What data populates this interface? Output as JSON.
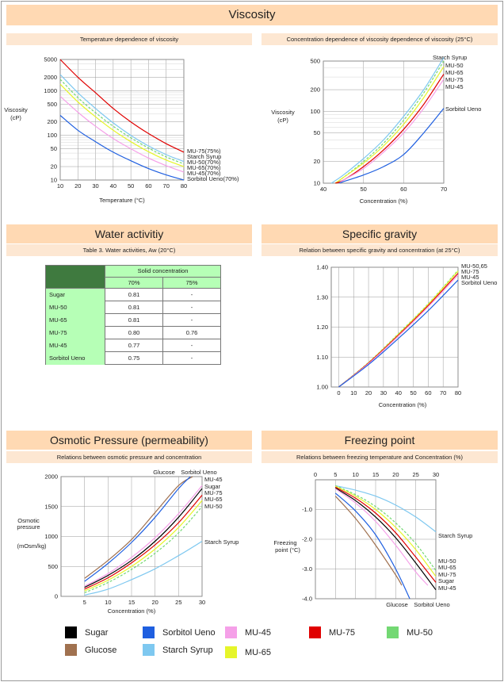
{
  "page": {
    "title": "Viscosity"
  },
  "colors": {
    "sugar": "#000000",
    "glucose": "#a0714f",
    "sorbitol": "#1f5fe0",
    "starch": "#7ec8f0",
    "mu45": "#f5a0e8",
    "mu50": "#73d873",
    "mu65": "#e6f52a",
    "mu75": "#e00000"
  },
  "panels": {
    "visc_temp": {
      "subtitle": "Temperature dependence of viscosity",
      "ylabel_line1": "Viscosity",
      "ylabel_line2": "(cP)",
      "xlabel": "Temperature (°C)",
      "labels": [
        "MU-75(75%)",
        "Starch Syrup",
        "MU-50(70%)",
        "MU-65(70%)",
        "MU-45(70%)",
        "Sorbitol Ueno(70%)"
      ]
    },
    "visc_conc": {
      "subtitle": "Concentration dependence of viscosity dependence of viscosity (25°C)",
      "ylabel_line1": "Viscosity",
      "ylabel_line2": "(cP)",
      "xlabel": "Concentration (%)",
      "labels": [
        "Starch Syrup",
        "MU-50",
        "MU-65",
        "MU-75",
        "MU-45",
        "Sorbitol Ueno"
      ]
    },
    "water": {
      "title": "Water activitiy",
      "subtitle": "Table 3. Water activities, Aw (20°C)"
    },
    "sg": {
      "title": "Specific gravity",
      "subtitle": "Relation between specific gravity and concentration (at 25°C)",
      "xlabel": "Concentration (%)",
      "labels": [
        "MU-50,65",
        "MU-75",
        "MU-45",
        "Sorbitol Ueno"
      ]
    },
    "osm": {
      "title": "Osmotic Pressure (permeability)",
      "subtitle": "Relations between osmotic pressure and concentration",
      "ylabel_line1": "Osmotic",
      "ylabel_line2": "pressure",
      "ylabel_line3": "(mOsm/kg)",
      "xlabel": "Concentration (%)",
      "top_labels": [
        "Glucose",
        "Sorbitol Ueno"
      ],
      "labels": [
        "MU-45",
        "Sugar",
        "MU-75",
        "MU-65",
        "MU-50"
      ],
      "extra_label": "Starch Syrup"
    },
    "fp": {
      "title": "Freezing point",
      "subtitle": "Relations between freezing temperature and Concentration (%)",
      "ylabel_line1": "Freezing",
      "ylabel_line2": "point (°C)",
      "starch_label": "Starch Syrup",
      "labels": [
        "MU-50",
        "MU-65",
        "MU-75",
        "Sugar",
        "MU-45"
      ],
      "bottom_labels": [
        "Glucose",
        "Sorbitol Ueno"
      ]
    }
  },
  "water_table": {
    "header_group": "Solid concentration",
    "col1": "70%",
    "col2": "75%",
    "rows": [
      {
        "name": "Sugar",
        "v70": "0.81",
        "v75": "-"
      },
      {
        "name": "MU-50",
        "v70": "0.81",
        "v75": "-"
      },
      {
        "name": "MU-65",
        "v70": "0.81",
        "v75": "-"
      },
      {
        "name": "MU-75",
        "v70": "0.80",
        "v75": "0.76"
      },
      {
        "name": "MU-45",
        "v70": "0.77",
        "v75": "-"
      },
      {
        "name": "Sorbitol Ueno",
        "v70": "0.75",
        "v75": "-"
      }
    ]
  },
  "legend": [
    {
      "name": "Sugar",
      "key": "sugar"
    },
    {
      "name": "Sorbitol Ueno",
      "key": "sorbitol"
    },
    {
      "name": "MU-45",
      "key": "mu45"
    },
    {
      "name": "MU-75",
      "key": "mu75"
    },
    {
      "name": "MU-50",
      "key": "mu50"
    },
    {
      "name": "Glucose",
      "key": "glucose"
    },
    {
      "name": "Starch Syrup",
      "key": "starch"
    },
    {
      "name": "MU-65",
      "key": "mu65"
    }
  ],
  "chart_data": [
    {
      "type": "line",
      "xlim": [
        10,
        80
      ],
      "ylim": [
        10,
        5000
      ],
      "yscale": "log",
      "xticks": [
        10,
        20,
        30,
        40,
        50,
        60,
        70,
        80
      ],
      "yticks": [
        10,
        20,
        50,
        100,
        200,
        500,
        1000,
        2000,
        5000
      ],
      "grid": true,
      "series": [
        {
          "name": "MU-75(75%)",
          "key": "mu75",
          "dashed": false,
          "x": [
            10,
            20,
            30,
            40,
            50,
            60,
            70,
            80
          ],
          "y": [
            5000,
            2000,
            900,
            400,
            200,
            110,
            65,
            42
          ]
        },
        {
          "name": "Starch Syrup",
          "key": "starch",
          "dashed": false,
          "x": [
            10,
            20,
            30,
            40,
            50,
            60,
            70,
            80
          ],
          "y": [
            2300,
            900,
            400,
            190,
            100,
            58,
            37,
            26
          ]
        },
        {
          "name": "MU-50(70%)",
          "key": "mu50",
          "dashed": true,
          "x": [
            10,
            20,
            30,
            40,
            50,
            60,
            70,
            80
          ],
          "y": [
            1800,
            700,
            320,
            160,
            88,
            52,
            33,
            23
          ]
        },
        {
          "name": "MU-65(70%)",
          "key": "mu65",
          "dashed": false,
          "x": [
            10,
            20,
            30,
            40,
            50,
            60,
            70,
            80
          ],
          "y": [
            1400,
            560,
            260,
            130,
            72,
            43,
            28,
            20
          ]
        },
        {
          "name": "MU-45(70%)",
          "key": "mu45",
          "dashed": false,
          "x": [
            10,
            20,
            30,
            40,
            50,
            60,
            70,
            80
          ],
          "y": [
            750,
            330,
            160,
            85,
            50,
            31,
            21,
            15
          ]
        },
        {
          "name": "Sorbitol Ueno(70%)",
          "key": "sorbitol",
          "dashed": false,
          "x": [
            10,
            20,
            30,
            40,
            50,
            60,
            70,
            80
          ],
          "y": [
            280,
            130,
            72,
            42,
            27,
            18,
            13,
            10
          ]
        }
      ]
    },
    {
      "type": "line",
      "xlim": [
        40,
        70
      ],
      "ylim": [
        10,
        500
      ],
      "yscale": "log",
      "xticks": [
        40,
        50,
        60,
        70
      ],
      "yticks": [
        10,
        20,
        50,
        100,
        200,
        500
      ],
      "grid": true,
      "series": [
        {
          "name": "Starch Syrup",
          "key": "starch",
          "dashed": false,
          "x": [
            42,
            45,
            50,
            55,
            60,
            65,
            70
          ],
          "y": [
            10,
            13,
            22,
            40,
            85,
            200,
            560
          ]
        },
        {
          "name": "MU-50",
          "key": "mu50",
          "dashed": true,
          "x": [
            43,
            45,
            50,
            55,
            60,
            65,
            70
          ],
          "y": [
            10,
            12,
            20,
            36,
            75,
            180,
            500
          ]
        },
        {
          "name": "MU-65",
          "key": "mu65",
          "dashed": false,
          "x": [
            43,
            45,
            50,
            55,
            60,
            65,
            70
          ],
          "y": [
            10,
            12,
            19,
            33,
            66,
            155,
            420
          ]
        },
        {
          "name": "MU-75",
          "key": "mu75",
          "dashed": false,
          "x": [
            43,
            45,
            50,
            55,
            60,
            65,
            70
          ],
          "y": [
            10,
            11,
            17,
            29,
            56,
            125,
            330
          ]
        },
        {
          "name": "MU-45",
          "key": "mu45",
          "dashed": false,
          "x": [
            44,
            45,
            50,
            55,
            60,
            65,
            70
          ],
          "y": [
            10,
            11,
            16,
            27,
            50,
            110,
            280
          ]
        },
        {
          "name": "Sorbitol Ueno",
          "key": "sorbitol",
          "dashed": false,
          "x": [
            44,
            45,
            50,
            55,
            60,
            65,
            70
          ],
          "y": [
            10,
            10.5,
            13,
            17,
            25,
            50,
            110
          ]
        }
      ]
    },
    {
      "type": "line",
      "xlim": [
        -5,
        80
      ],
      "ylim": [
        1.0,
        1.4
      ],
      "xticks": [
        0,
        10,
        20,
        30,
        40,
        50,
        60,
        70,
        80
      ],
      "yticks": [
        1.0,
        1.1,
        1.2,
        1.3,
        1.4
      ],
      "grid": true,
      "series": [
        {
          "name": "MU-50,65",
          "key": "mu50",
          "dashed": true,
          "x": [
            0,
            20,
            40,
            60,
            80
          ],
          "y": [
            1.0,
            1.082,
            1.178,
            1.278,
            1.39
          ]
        },
        {
          "name": "MU-65",
          "key": "mu65",
          "dashed": false,
          "x": [
            0,
            20,
            40,
            60,
            80
          ],
          "y": [
            1.0,
            1.081,
            1.176,
            1.276,
            1.387
          ]
        },
        {
          "name": "MU-75",
          "key": "mu75",
          "dashed": false,
          "x": [
            0,
            20,
            40,
            60,
            80
          ],
          "y": [
            1.0,
            1.08,
            1.173,
            1.272,
            1.38
          ]
        },
        {
          "name": "MU-45",
          "key": "mu45",
          "dashed": false,
          "x": [
            0,
            20,
            40,
            60,
            80
          ],
          "y": [
            1.0,
            1.078,
            1.17,
            1.268,
            1.374
          ]
        },
        {
          "name": "Sorbitol Ueno",
          "key": "sorbitol",
          "dashed": false,
          "x": [
            0,
            20,
            40,
            60,
            80
          ],
          "y": [
            1.0,
            1.075,
            1.162,
            1.255,
            1.357
          ]
        }
      ]
    },
    {
      "type": "line",
      "xlim": [
        0,
        30
      ],
      "ylim": [
        0,
        2000
      ],
      "xticks": [
        5,
        10,
        15,
        20,
        25,
        30
      ],
      "yticks": [
        0,
        500,
        1000,
        1500,
        2000
      ],
      "grid": true,
      "series": [
        {
          "name": "Glucose",
          "key": "glucose",
          "dashed": false,
          "x": [
            5,
            10,
            15,
            20,
            25,
            28
          ],
          "y": [
            300,
            600,
            950,
            1400,
            1850,
            2000
          ]
        },
        {
          "name": "Sorbitol Ueno",
          "key": "sorbitol",
          "dashed": false,
          "x": [
            5,
            10,
            15,
            20,
            25,
            27.5
          ],
          "y": [
            250,
            550,
            900,
            1320,
            1800,
            2000
          ]
        },
        {
          "name": "MU-45",
          "key": "mu45",
          "dashed": false,
          "x": [
            5,
            10,
            15,
            20,
            25,
            30
          ],
          "y": [
            170,
            380,
            650,
            980,
            1380,
            1850
          ]
        },
        {
          "name": "Sugar",
          "key": "sugar",
          "dashed": false,
          "x": [
            5,
            10,
            15,
            20,
            25,
            30
          ],
          "y": [
            150,
            350,
            600,
            920,
            1320,
            1800
          ]
        },
        {
          "name": "MU-75",
          "key": "mu75",
          "dashed": false,
          "x": [
            5,
            10,
            15,
            20,
            25,
            30
          ],
          "y": [
            120,
            310,
            560,
            860,
            1230,
            1690
          ]
        },
        {
          "name": "MU-65",
          "key": "mu65",
          "dashed": false,
          "x": [
            5,
            10,
            15,
            20,
            25,
            30
          ],
          "y": [
            90,
            270,
            500,
            790,
            1150,
            1600
          ]
        },
        {
          "name": "MU-50",
          "key": "mu50",
          "dashed": true,
          "x": [
            5,
            10,
            15,
            20,
            25,
            30
          ],
          "y": [
            60,
            230,
            450,
            720,
            1060,
            1500
          ]
        },
        {
          "name": "Starch Syrup",
          "key": "starch",
          "dashed": false,
          "x": [
            5,
            10,
            15,
            20,
            25,
            30
          ],
          "y": [
            20,
            120,
            280,
            460,
            680,
            920
          ]
        }
      ]
    },
    {
      "type": "line",
      "xlim": [
        0,
        30
      ],
      "ylim": [
        -4.0,
        0
      ],
      "xaxis_position": "top",
      "xticks": [
        0,
        5,
        10,
        15,
        20,
        25,
        30
      ],
      "yticks": [
        -1.0,
        -2.0,
        -3.0,
        -4.0
      ],
      "grid": true,
      "series": [
        {
          "name": "Starch Syrup",
          "key": "starch",
          "dashed": false,
          "x": [
            5,
            10,
            15,
            20,
            25,
            30
          ],
          "y": [
            -0.2,
            -0.35,
            -0.55,
            -0.85,
            -1.25,
            -1.75
          ]
        },
        {
          "name": "MU-50",
          "key": "mu50",
          "dashed": true,
          "x": [
            5,
            10,
            15,
            20,
            25,
            30
          ],
          "y": [
            -0.2,
            -0.5,
            -0.9,
            -1.45,
            -2.15,
            -3.05
          ]
        },
        {
          "name": "MU-65",
          "key": "mu65",
          "dashed": false,
          "x": [
            5,
            10,
            15,
            20,
            25,
            30
          ],
          "y": [
            -0.22,
            -0.55,
            -1.0,
            -1.6,
            -2.35,
            -3.25
          ]
        },
        {
          "name": "MU-75",
          "key": "mu75",
          "dashed": false,
          "x": [
            5,
            10,
            15,
            20,
            25,
            30
          ],
          "y": [
            -0.25,
            -0.62,
            -1.12,
            -1.78,
            -2.6,
            -3.45
          ]
        },
        {
          "name": "Sugar",
          "key": "sugar",
          "dashed": false,
          "x": [
            5,
            10,
            15,
            20,
            25,
            30
          ],
          "y": [
            -0.28,
            -0.7,
            -1.25,
            -1.95,
            -2.8,
            -3.7
          ]
        },
        {
          "name": "MU-45",
          "key": "mu45",
          "dashed": false,
          "x": [
            5,
            10,
            15,
            20,
            25,
            28
          ],
          "y": [
            -0.3,
            -0.78,
            -1.4,
            -2.2,
            -3.1,
            -3.55
          ]
        },
        {
          "name": "Glucose",
          "key": "glucose",
          "dashed": false,
          "x": [
            5,
            10,
            15,
            20,
            21.5
          ],
          "y": [
            -0.55,
            -1.3,
            -2.2,
            -3.2,
            -3.55
          ]
        },
        {
          "name": "Sorbitol Ueno",
          "key": "sorbitol",
          "dashed": false,
          "x": [
            5,
            10,
            15,
            20,
            23.5
          ],
          "y": [
            -0.45,
            -1.05,
            -1.85,
            -3.0,
            -4.0
          ]
        }
      ]
    }
  ]
}
